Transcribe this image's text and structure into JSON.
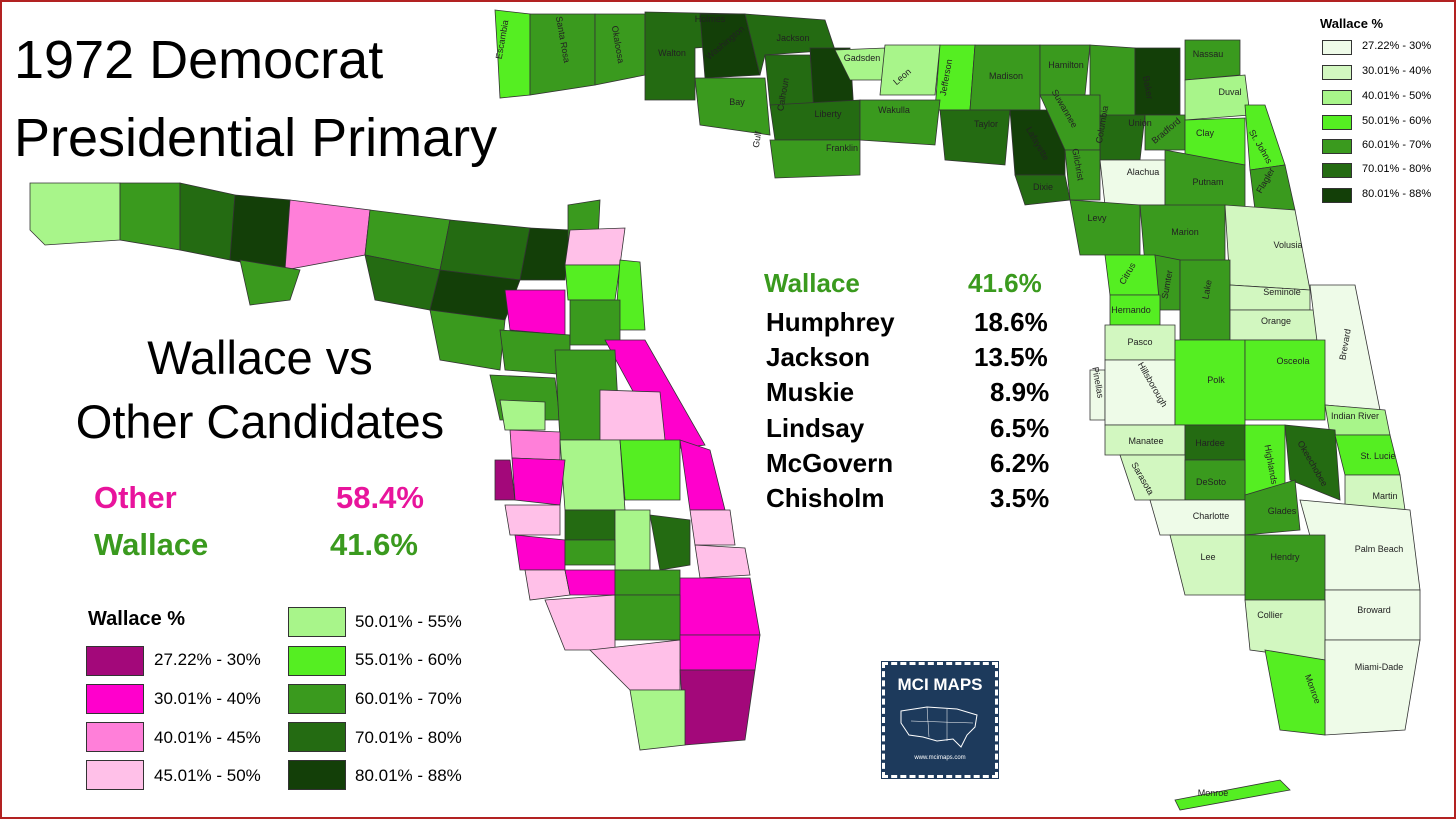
{
  "title_line1": "1972 Democrat",
  "title_line2": "Presidential Primary",
  "subtitle_line1": "Wallace vs",
  "subtitle_line2": "Other Candidates",
  "vs": {
    "other_label": "Other",
    "other_value": "58.4%",
    "wallace_label": "Wallace",
    "wallace_value": "41.6%"
  },
  "candidates": [
    {
      "name": "Wallace",
      "value": "41.6%"
    },
    {
      "name": "Humphrey",
      "value": "18.6%"
    },
    {
      "name": "Jackson",
      "value": "13.5%"
    },
    {
      "name": "Muskie",
      "value": "8.9%"
    },
    {
      "name": "Lindsay",
      "value": "6.5%"
    },
    {
      "name": "McGovern",
      "value": "6.2%"
    },
    {
      "name": "Chisholm",
      "value": "3.5%"
    }
  ],
  "legend_vs": {
    "title": "Wallace %",
    "items": [
      {
        "label": "27.22% - 30%",
        "color": "#a3087a"
      },
      {
        "label": "30.01% - 40%",
        "color": "#ff00cc"
      },
      {
        "label": "40.01% - 45%",
        "color": "#ff7fd9"
      },
      {
        "label": "45.01% - 50%",
        "color": "#ffc0e8"
      },
      {
        "label": "50.01% - 55%",
        "color": "#a8f58a"
      },
      {
        "label": "55.01% - 60%",
        "color": "#55ee22"
      },
      {
        "label": "60.01% - 70%",
        "color": "#3a9a1e"
      },
      {
        "label": "70.01% - 80%",
        "color": "#246b12"
      },
      {
        "label": "80.01% - 88%",
        "color": "#133f08"
      }
    ]
  },
  "legend_main": {
    "title": "Wallace  %",
    "items": [
      {
        "label": "27.22% - 30%",
        "color": "#eefbe8"
      },
      {
        "label": "30.01% - 40%",
        "color": "#d2f7c0"
      },
      {
        "label": "40.01% - 50%",
        "color": "#a8f58a"
      },
      {
        "label": "50.01% - 60%",
        "color": "#55ee22"
      },
      {
        "label": "60.01% - 70%",
        "color": "#3a9a1e"
      },
      {
        "label": "70.01% - 80%",
        "color": "#246b12"
      },
      {
        "label": "80.01% - 88%",
        "color": "#133f08"
      }
    ]
  },
  "counties": [
    "Escambia",
    "Santa Rosa",
    "Okaloosa",
    "Holmes",
    "Walton",
    "Washington",
    "Jackson",
    "Gadsden",
    "Leon",
    "Jefferson",
    "Madison",
    "Hamilton",
    "Nassau",
    "Bay",
    "Calhoun",
    "Liberty",
    "Wakulla",
    "Taylor",
    "Suwannee",
    "Columbia",
    "Baker",
    "Duval",
    "Gulf",
    "Franklin",
    "Lafayette",
    "Union",
    "Bradford",
    "Clay",
    "St. Johns",
    "Gilchrist",
    "Alachua",
    "Putnam",
    "Flagler",
    "Dixie",
    "Levy",
    "Marion",
    "Volusia",
    "Citrus",
    "Sumter",
    "Lake",
    "Seminole",
    "Hernando",
    "Orange",
    "Brevard",
    "Pasco",
    "Pinellas",
    "Hillsborough",
    "Polk",
    "Osceola",
    "Indian River",
    "Manatee",
    "Hardee",
    "Highlands",
    "Okeechobee",
    "St. Lucie",
    "Sarasota",
    "DeSoto",
    "Martin",
    "Charlotte",
    "Glades",
    "Lee",
    "Hendry",
    "Palm Beach",
    "Collier",
    "Broward",
    "Monroe",
    "Miami-Dade",
    "Monroe"
  ],
  "badge": {
    "title": "MCI MAPS",
    "url": "www.mcimaps.com"
  }
}
